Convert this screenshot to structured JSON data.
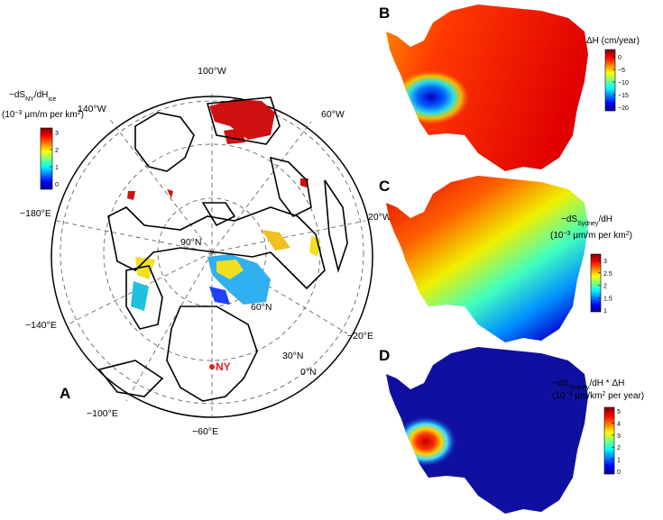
{
  "panels": {
    "a": {
      "label": "A",
      "colorbar_title": [
        "−dS",
        "NY",
        "/dH",
        "ice"
      ],
      "colorbar_units": [
        "(10",
        "−3",
        " μm/m per km",
        "2",
        ")"
      ],
      "colorbar_ticks": [
        "3",
        "2",
        "1",
        "0"
      ],
      "map_labels": {
        "lon_100w": "100°W",
        "lon_60w": "60°W",
        "lon_140w": "140°W",
        "lon_180e": "−180°E",
        "lon_20w": "20°W",
        "lon_140e": "−140°E",
        "lon_20e": "−20°E",
        "lon_100e": "−100°E",
        "lon_60e": "−60°E",
        "lat_90n": "90°N",
        "lat_60n": "60°N",
        "lat_30n": "30°N",
        "lat_0n": "0°N",
        "city": "NY"
      }
    },
    "b": {
      "label": "B",
      "colorbar_title": [
        "ΔH (cm/year)"
      ],
      "colorbar_ticks": [
        "0",
        "−5",
        "−10",
        "−15",
        "−20"
      ]
    },
    "c": {
      "label": "C",
      "colorbar_title": [
        "−dS",
        "Sydney",
        "/dH"
      ],
      "colorbar_units": [
        "(10",
        "−3",
        " μm/m per km",
        "2",
        ")"
      ],
      "colorbar_ticks": [
        "3",
        "2.5",
        "2",
        "1.5",
        "1"
      ]
    },
    "d": {
      "label": "D",
      "colorbar_title": [
        "−dS",
        "Sydney",
        "/dH * ΔH"
      ],
      "colorbar_units": [
        "(10",
        "−4",
        " μm/km",
        "2",
        " per year)"
      ],
      "colorbar_ticks": [
        "5",
        "4",
        "3",
        "2",
        "1",
        "0"
      ]
    }
  }
}
